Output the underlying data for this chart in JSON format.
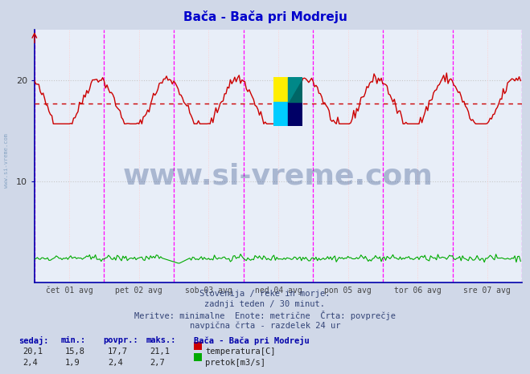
{
  "title": "Bača - Bača pri Modreju",
  "title_color": "#0000cc",
  "bg_color": "#d0d8e8",
  "plot_bg_color": "#e8eef8",
  "x_labels": [
    "čet 01 avg",
    "pet 02 avg",
    "sob 03 avg",
    "ned 04 avg",
    "pon 05 avg",
    "tor 06 avg",
    "sre 07 avg"
  ],
  "y_ticks": [
    10,
    20
  ],
  "ylim": [
    0,
    25
  ],
  "xlim": [
    0,
    336
  ],
  "avg_line_y": 17.7,
  "avg_line_color": "#cc0000",
  "temp_color": "#cc0000",
  "flow_color": "#00aa00",
  "vline_color": "#ff00ff",
  "grid_color_h": "#c8c8c8",
  "grid_color_v": "#ffcccc",
  "footer_lines": [
    "Slovenija / reke in morje.",
    "zadnji teden / 30 minut.",
    "Meritve: minimalne  Enote: metrične  Črta: povprečje",
    "navpična črta - razdelek 24 ur"
  ],
  "table_headers": [
    "sedaj:",
    "min.:",
    "povpr.:",
    "maks.:"
  ],
  "table_data": [
    [
      "20,1",
      "15,8",
      "17,7",
      "21,1"
    ],
    [
      "2,4",
      "1,9",
      "2,4",
      "2,7"
    ]
  ],
  "legend_station": "Bača - Bača pri Modreju",
  "legend_items": [
    "temperatura[C]",
    "pretok[m3/s]"
  ],
  "legend_colors": [
    "#cc0000",
    "#00aa00"
  ],
  "watermark_text": "www.si-vreme.com",
  "watermark_color": "#1a3a7a",
  "watermark_alpha": 0.3,
  "sidebar_text": "www.si-vreme.com",
  "sidebar_color": "#7799bb",
  "n_points": 336,
  "temp_min": 15.8,
  "temp_max": 21.1,
  "temp_avg": 17.7,
  "flow_min": 1.9,
  "flow_max": 2.7,
  "flow_avg": 2.4,
  "flow_scale": 0.5
}
